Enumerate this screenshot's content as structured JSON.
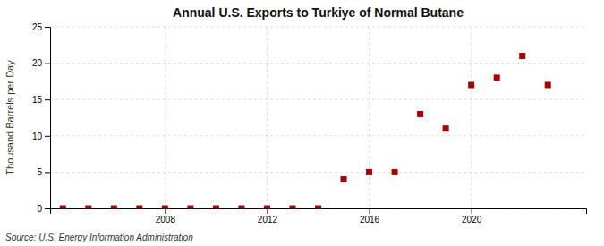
{
  "chart_data": {
    "type": "scatter",
    "title": "Annual U.S. Exports to Turkiye of Normal Butane",
    "ylabel": "Thousand Barrels per Day",
    "source": "Source: U.S. Energy Information Administration",
    "x": [
      2004,
      2005,
      2006,
      2007,
      2008,
      2009,
      2010,
      2011,
      2012,
      2013,
      2014,
      2015,
      2016,
      2017,
      2018,
      2019,
      2020,
      2021,
      2022,
      2023
    ],
    "values": [
      0,
      0,
      0,
      0,
      0,
      0,
      0,
      0,
      0,
      0,
      0,
      4,
      5,
      5,
      13,
      11,
      17,
      18,
      21,
      17
    ],
    "color": "#aa0000",
    "marker": "square",
    "xlim": [
      2003.5,
      2024.5
    ],
    "ylim": [
      0,
      25
    ],
    "xticks": [
      2008,
      2012,
      2016,
      2020
    ],
    "yticks": [
      0,
      5,
      10,
      15,
      20,
      25
    ],
    "grid": true
  }
}
